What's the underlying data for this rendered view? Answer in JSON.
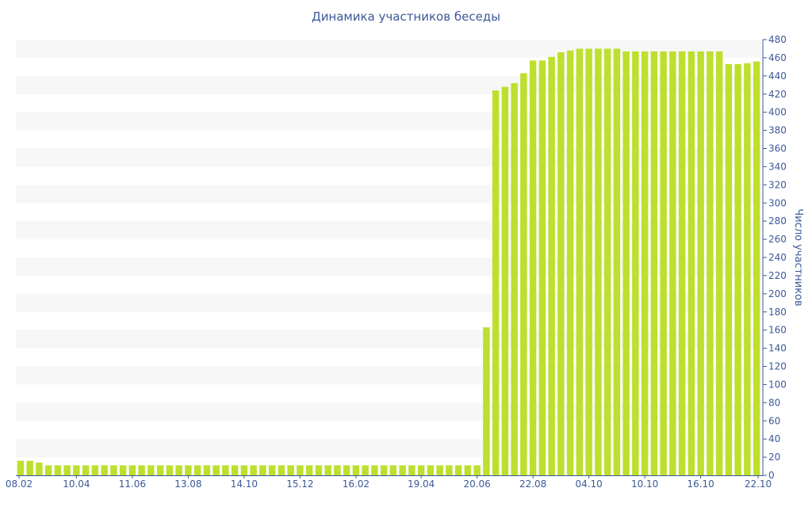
{
  "chart_data": {
    "type": "bar",
    "title": "Динамика участников беседы",
    "ylabel": "Число участников",
    "xlabel": "",
    "ylim": [
      0,
      480
    ],
    "y_ticks": [
      0,
      20,
      40,
      60,
      80,
      100,
      120,
      140,
      160,
      180,
      200,
      220,
      240,
      260,
      280,
      300,
      320,
      340,
      360,
      380,
      400,
      420,
      440,
      460,
      480
    ],
    "y_axis_side": "right",
    "x_tick_labels": [
      "08.02",
      "10.04",
      "11.06",
      "13.08",
      "14.10",
      "15.12",
      "16.02",
      "19.04",
      "20.06",
      "22.08",
      "04.10",
      "10.10",
      "16.10",
      "22.10"
    ],
    "bar_color": "#bedf2d",
    "band_color": "#f7f7f7",
    "text_color": "#3b5998",
    "values": [
      16,
      16,
      14,
      11,
      11,
      11,
      11,
      11,
      11,
      11,
      11,
      11,
      11,
      11,
      11,
      11,
      11,
      11,
      11,
      11,
      11,
      11,
      11,
      11,
      11,
      11,
      11,
      11,
      11,
      11,
      11,
      11,
      11,
      11,
      11,
      11,
      11,
      11,
      11,
      11,
      11,
      11,
      11,
      11,
      11,
      11,
      11,
      11,
      11,
      11,
      163,
      424,
      428,
      432,
      443,
      457,
      457,
      461,
      466,
      468,
      470,
      470,
      470,
      470,
      470,
      467,
      467,
      467,
      467,
      467,
      467,
      467,
      467,
      467,
      467,
      467,
      453,
      453,
      454,
      456
    ]
  }
}
